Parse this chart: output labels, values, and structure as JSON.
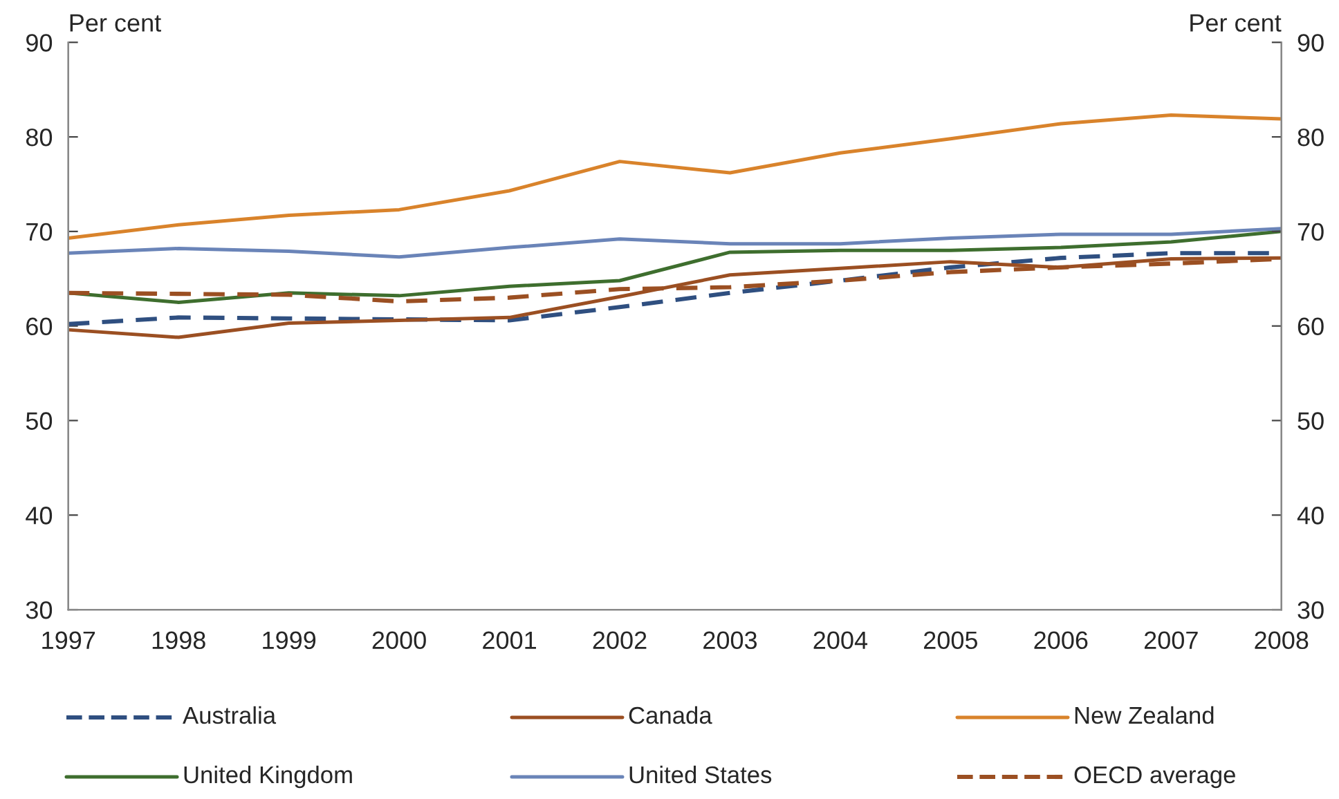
{
  "chart_data": {
    "type": "line",
    "ylabel": "Per cent",
    "y2label": "Per cent",
    "categories": [
      "1997",
      "1998",
      "1999",
      "2000",
      "2001",
      "2002",
      "2003",
      "2004",
      "2005",
      "2006",
      "2007",
      "2008"
    ],
    "series": [
      {
        "name": "Australia",
        "color": "#2f4f80",
        "line_style": "dashed",
        "values": [
          60.2,
          60.9,
          60.8,
          60.7,
          60.6,
          62.0,
          63.5,
          64.8,
          66.2,
          67.2,
          67.7,
          67.7
        ]
      },
      {
        "name": "Canada",
        "color": "#9b4f22",
        "line_style": "solid",
        "values": [
          59.6,
          58.8,
          60.3,
          60.6,
          60.9,
          63.1,
          65.4,
          66.1,
          66.8,
          66.2,
          67.1,
          67.2
        ]
      },
      {
        "name": "New Zealand",
        "color": "#d9832b",
        "line_style": "solid",
        "values": [
          69.3,
          70.7,
          71.7,
          72.3,
          74.3,
          77.4,
          76.2,
          78.3,
          79.8,
          81.4,
          82.3,
          81.9
        ]
      },
      {
        "name": "United Kingdom",
        "color": "#3e6e2e",
        "line_style": "solid",
        "values": [
          63.5,
          62.5,
          63.5,
          63.2,
          64.2,
          64.8,
          67.8,
          68.0,
          68.0,
          68.3,
          68.9,
          70.0
        ]
      },
      {
        "name": "United States",
        "color": "#6a84b8",
        "line_style": "solid",
        "values": [
          67.7,
          68.2,
          67.9,
          67.3,
          68.3,
          69.2,
          68.7,
          68.7,
          69.3,
          69.7,
          69.7,
          70.3
        ]
      },
      {
        "name": "OECD average",
        "color": "#9b4f22",
        "line_style": "dashed",
        "values": [
          63.5,
          63.4,
          63.3,
          62.6,
          63.0,
          63.9,
          64.1,
          64.8,
          65.7,
          66.2,
          66.6,
          67.1
        ]
      }
    ],
    "ylim": [
      30,
      90
    ],
    "yticks": [
      30,
      40,
      50,
      60,
      70,
      80,
      90
    ],
    "y2lim": [
      30,
      90
    ],
    "y2ticks": [
      30,
      40,
      50,
      60,
      70,
      80,
      90
    ],
    "grid": false,
    "legend": "bottom",
    "marker": "none"
  }
}
